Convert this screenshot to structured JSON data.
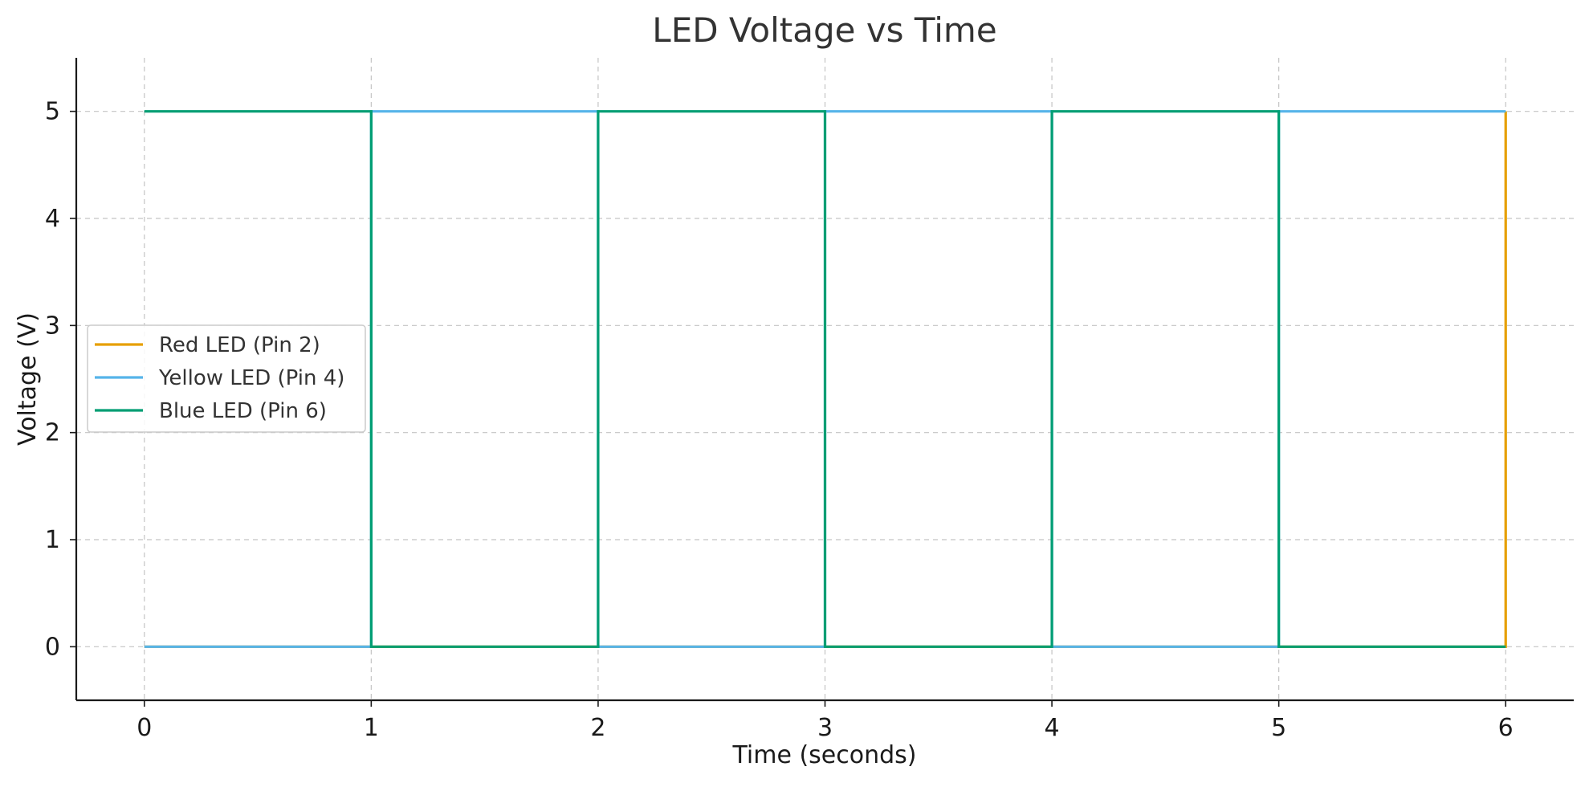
{
  "chart_data": {
    "type": "line",
    "step": "post",
    "title": "LED Voltage vs Time",
    "xlabel": "Time (seconds)",
    "ylabel": "Voltage (V)",
    "xlim": [
      -0.3,
      6.3
    ],
    "ylim": [
      -0.5,
      5.5
    ],
    "xticks": [
      0,
      1,
      2,
      3,
      4,
      5,
      6
    ],
    "yticks": [
      0,
      1,
      2,
      3,
      4,
      5
    ],
    "grid": true,
    "legend_position": "center-left",
    "series": [
      {
        "name": "Red LED (Pin 2)",
        "color": "#E69F00",
        "x": [
          0,
          1,
          2,
          3,
          4,
          5,
          6
        ],
        "y": [
          0,
          0,
          0,
          0,
          0,
          0,
          5
        ]
      },
      {
        "name": "Yellow LED (Pin 4)",
        "color": "#56B4E9",
        "x": [
          0,
          1,
          2,
          3,
          4,
          5,
          6
        ],
        "y": [
          0,
          5,
          0,
          5,
          0,
          5,
          5
        ]
      },
      {
        "name": "Blue LED (Pin 6)",
        "color": "#009E73",
        "x": [
          0,
          1,
          2,
          3,
          4,
          5,
          6
        ],
        "y": [
          5,
          0,
          5,
          0,
          5,
          0,
          0
        ]
      }
    ]
  }
}
